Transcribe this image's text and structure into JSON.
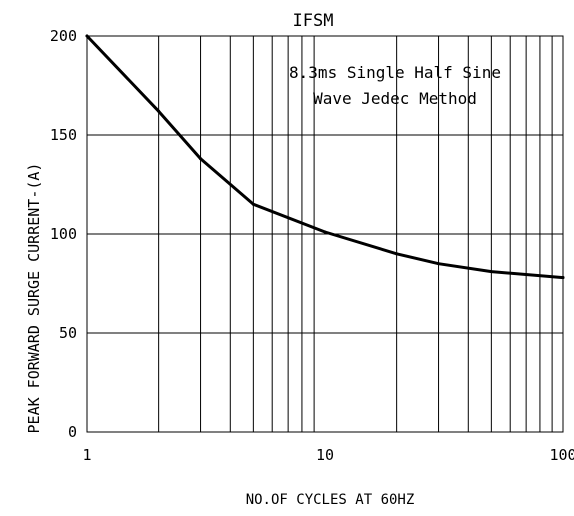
{
  "chart_data": {
    "type": "line",
    "title": "IFSM",
    "xlabel": "NO.OF CYCLES AT 60HZ",
    "ylabel": "PEAK FORWARD SURGE CURRENT-(A)",
    "annotation": [
      "8.3ms Single Half Sine",
      "Wave Jedec Method"
    ],
    "xlim": [
      1,
      100
    ],
    "ylim": [
      0,
      200
    ],
    "x_scale": "log",
    "grid": true,
    "x_ticks": [
      "1",
      "10",
      "100"
    ],
    "y_ticks": [
      "0",
      "50",
      "100",
      "150",
      "200"
    ],
    "series": [
      {
        "x": [
          1,
          2,
          3,
          5,
          10,
          20,
          30,
          50,
          100
        ],
        "y": [
          200,
          162,
          138,
          115,
          101,
          90,
          85,
          81,
          78
        ]
      }
    ]
  },
  "colors": {
    "line": "#000000",
    "grid": "#000000",
    "background": "#ffffff"
  }
}
